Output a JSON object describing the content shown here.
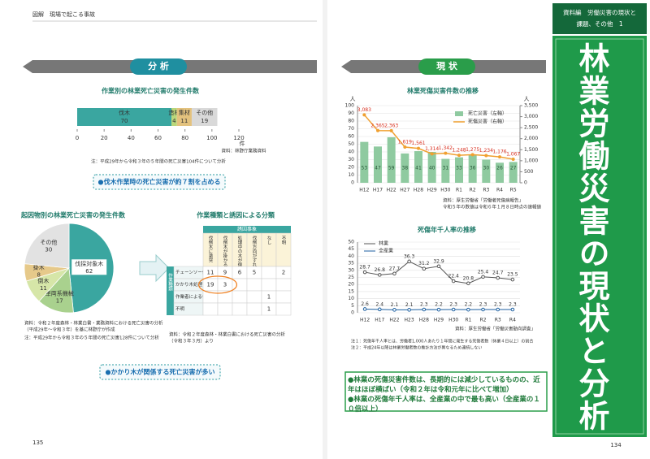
{
  "header": {
    "left": "図解　現場で起こる事故",
    "tab": [
      "資料編　労働災害の現状と",
      "課題、その他　1"
    ],
    "vertical_title": "林業労働災害の現状と分析"
  },
  "sections": {
    "left": "分 析",
    "right": "現 状"
  },
  "callouts": [
    "●伐木作業時の死亡災害が約７割を占める",
    "●かかり木が関係する死亡災害が多い"
  ],
  "summary": [
    "●林業の死傷災害件数は、長期的には減少しているものの、近年はほぼ横ばい（令和２年は令和元年に比べて増加）",
    "●林業の死傷年千人率は、全産業の中で最も高い（全産業の１０倍以上）"
  ],
  "page_numbers": [
    "135",
    "134"
  ],
  "table": {
    "title": "作業種類と誘因による分類",
    "corner": "誘因事象",
    "group": "作業種類",
    "columns": [
      "伐倒木に激突",
      "伐倒木が掛かる",
      "処理中の木が倒れる",
      "伐倒方向がずれる",
      "なし",
      "不明"
    ],
    "rows": [
      {
        "label": "チェーンソー伐倒",
        "cells": [
          11,
          9,
          6,
          5,
          null,
          2
        ]
      },
      {
        "label": "かかり木処理",
        "cells": [
          19,
          3,
          null,
          null,
          null,
          null
        ]
      },
      {
        "label": "作業者による伐倒・玉切等",
        "cells": [
          null,
          null,
          null,
          null,
          1,
          null
        ]
      },
      {
        "label": "不明",
        "cells": [
          null,
          null,
          null,
          null,
          1,
          null
        ]
      }
    ],
    "note": [
      "資料：令和２年度森林・林業白書における死亡災害の分析",
      "（令和３年３月）より"
    ]
  },
  "chart_data": [
    {
      "type": "hstack",
      "title": "作業別の林業死亡災害の発生件数",
      "series": [
        {
          "name": "伐木",
          "color": "#3aa6a0",
          "values": [
            70
          ]
        },
        {
          "name": "造材",
          "color": "#b9d77a",
          "values": [
            4
          ]
        },
        {
          "name": "集材",
          "color": "#e3c27e",
          "values": [
            11
          ]
        },
        {
          "name": "その他",
          "color": "#d9d9d9",
          "values": [
            19
          ]
        }
      ],
      "xlim": [
        0,
        120
      ],
      "xticks": [
        0,
        20,
        40,
        60,
        80,
        100,
        120
      ],
      "x_unit": "件",
      "source": "資料：林野庁業務資料",
      "note": "注：平成29年から令和３年の５年間の死亡災害104件について分析"
    },
    {
      "type": "pie",
      "title": "起因物別の林業死亡災害の発生件数",
      "categories": [
        "伐採対象木",
        "車両系機械",
        "倒木",
        "掛木",
        "その他"
      ],
      "values": [
        62,
        17,
        11,
        8,
        30
      ],
      "colors": [
        "#3aa6a0",
        "#a9d18e",
        "#d6e6a8",
        "#e6c98a",
        "#e2e2e2"
      ],
      "source": [
        "資料：令和２年度森林・林業白書・業務資料における死亡災害の分析",
        "（平成29年～令和３年）を基に林野庁が作成"
      ],
      "note": "注：平成29年から令和３年の５年間の死亡災害128件について分析"
    },
    {
      "type": "bar-line",
      "title": "林業死傷災害件数の推移",
      "categories": [
        "H12",
        "H17",
        "H22",
        "H27",
        "H28",
        "H29",
        "H30",
        "R1",
        "R2",
        "R3",
        "R4",
        "R5"
      ],
      "series": [
        {
          "name": "死亡災害（左軸）",
          "type": "bar",
          "color": "#8fcaa0",
          "values": [
            53,
            47,
            59,
            38,
            41,
            40,
            31,
            33,
            36,
            30,
            26,
            27
          ]
        },
        {
          "name": "死傷災害（右軸）",
          "type": "line",
          "axis": "y2",
          "color": "#f0a030",
          "values": [
            3083,
            2365,
            2363,
            1619,
            1561,
            1314,
            1342,
            1248,
            1275,
            1234,
            1176,
            1067
          ],
          "value_labels": [
            "3,083",
            "2,365",
            "2,363",
            "1,619",
            "1,561",
            "1,314",
            "1,342",
            "1,248",
            "1,275",
            "1,234",
            "1,176",
            "1,067"
          ]
        }
      ],
      "ylim": [
        0,
        100
      ],
      "yticks": [
        0,
        10,
        20,
        30,
        40,
        50,
        60,
        70,
        80,
        90,
        100
      ],
      "y2lim": [
        0,
        3500
      ],
      "y2ticks": [
        0,
        500,
        {
          "value": 1000,
          "label": "1,000"
        },
        {
          "value": 1500,
          "label": "1,500"
        },
        {
          "value": 2000,
          "label": "2,000"
        },
        {
          "value": 2500,
          "label": "2,500"
        },
        {
          "value": 3000,
          "label": "3,000"
        },
        {
          "value": 3500,
          "label": "3,500"
        }
      ],
      "y_unit": "人",
      "y2_unit": "人",
      "grid": true,
      "source": "資料：厚生労働省「労働者死傷病報告」",
      "note": "令和５年の数値は令和６年１月８日時点の速報値"
    },
    {
      "type": "line",
      "title": "死傷年千人率の推移",
      "categories": [
        "H12",
        "H17",
        "H22",
        "H23",
        "H28",
        "H29",
        "H30",
        "R1",
        "R2",
        "R3",
        "R4"
      ],
      "series": [
        {
          "name": "林業",
          "color": "#555555",
          "values": [
            28.7,
            26.8,
            27.7,
            36.3,
            31.2,
            32.9,
            22.4,
            20.8,
            25.4,
            24.7,
            23.5
          ]
        },
        {
          "name": "全産業",
          "color": "#1c5fa0",
          "values": [
            2.6,
            2.4,
            2.1,
            2.1,
            2.3,
            2.2,
            2.3,
            2.2,
            2.3,
            2.3,
            2.3
          ]
        }
      ],
      "ylim": [
        0,
        50
      ],
      "yticks": [
        0,
        5,
        10,
        15,
        20,
        25,
        30,
        35,
        40,
        45,
        50
      ],
      "grid": true,
      "source": "資料：厚生労働省「労働災害動向調査」",
      "notes": [
        "注１：死傷年千人率とは、労働者1,000人あたり１年間に発生する死傷者数（休業４日以上）の割合",
        "注２：平成24年以降は林業労働者数の推計方法が異なるため連続しない"
      ]
    }
  ]
}
